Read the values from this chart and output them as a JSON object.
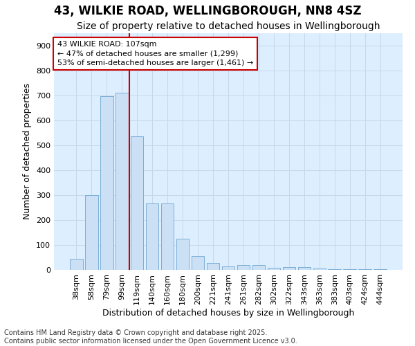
{
  "title_line1": "43, WILKIE ROAD, WELLINGBOROUGH, NN8 4SZ",
  "title_line2": "Size of property relative to detached houses in Wellingborough",
  "xlabel": "Distribution of detached houses by size in Wellingborough",
  "ylabel": "Number of detached properties",
  "categories": [
    "38sqm",
    "58sqm",
    "79sqm",
    "99sqm",
    "119sqm",
    "140sqm",
    "160sqm",
    "180sqm",
    "200sqm",
    "221sqm",
    "241sqm",
    "261sqm",
    "282sqm",
    "302sqm",
    "322sqm",
    "343sqm",
    "363sqm",
    "383sqm",
    "403sqm",
    "424sqm",
    "444sqm"
  ],
  "values": [
    45,
    300,
    695,
    710,
    535,
    265,
    265,
    125,
    55,
    28,
    15,
    20,
    20,
    8,
    10,
    10,
    5,
    3,
    2,
    2,
    2
  ],
  "bar_color": "#cce0f5",
  "bar_edge_color": "#7bafd4",
  "red_line_x": 3.5,
  "annotation_line1": "43 WILKIE ROAD: 107sqm",
  "annotation_line2": "← 47% of detached houses are smaller (1,299)",
  "annotation_line3": "53% of semi-detached houses are larger (1,461) →",
  "annotation_box_facecolor": "#ffffff",
  "annotation_box_edgecolor": "#cc0000",
  "red_line_color": "#cc0000",
  "ylim_max": 950,
  "yticks": [
    0,
    100,
    200,
    300,
    400,
    500,
    600,
    700,
    800,
    900
  ],
  "grid_color": "#c5d8ec",
  "bg_color": "#ffffff",
  "plot_bg_color": "#ddeeff",
  "footer_text": "Contains HM Land Registry data © Crown copyright and database right 2025.\nContains public sector information licensed under the Open Government Licence v3.0.",
  "title_fontsize": 12,
  "subtitle_fontsize": 10,
  "xlabel_fontsize": 9,
  "ylabel_fontsize": 9,
  "tick_fontsize": 8,
  "annot_fontsize": 8,
  "footer_fontsize": 7
}
